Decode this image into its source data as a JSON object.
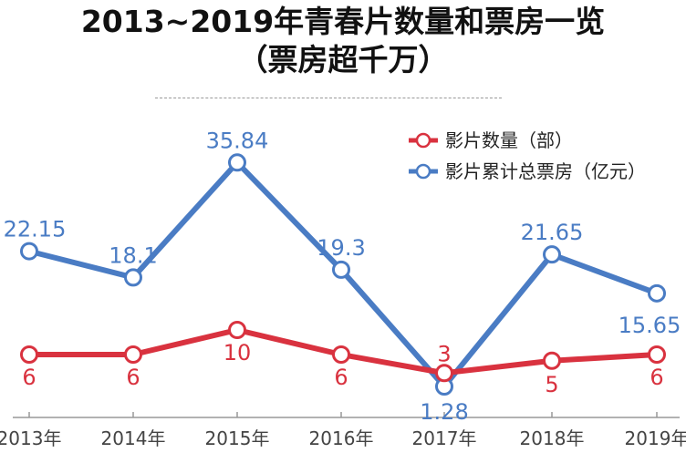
{
  "title_line1": "2013~2019年青春片数量和票房一览",
  "title_line2": "（票房超千万）",
  "chart_data": {
    "type": "line",
    "categories": [
      "2013年",
      "2014年",
      "2015年",
      "2016年",
      "2017年",
      "2018年",
      "2019年"
    ],
    "series": [
      {
        "name": "影片数量（部）",
        "values": [
          6,
          6,
          10,
          6,
          3,
          5,
          6
        ],
        "color": "#d9323f",
        "labels": [
          "6",
          "6",
          "10",
          "6",
          "3",
          "5",
          "6"
        ]
      },
      {
        "name": "影片累计总票房（亿元）",
        "values": [
          22.15,
          18.1,
          35.84,
          19.3,
          1.28,
          21.65,
          15.65
        ],
        "color": "#4a7cc4",
        "labels": [
          "22.15",
          "18.1",
          "35.84",
          "19.3",
          "1.28",
          "21.65",
          "15.65"
        ]
      }
    ],
    "legend": [
      "影片数量（部）",
      "影片累计总票房（亿元）"
    ],
    "axis_color": "#999999"
  }
}
